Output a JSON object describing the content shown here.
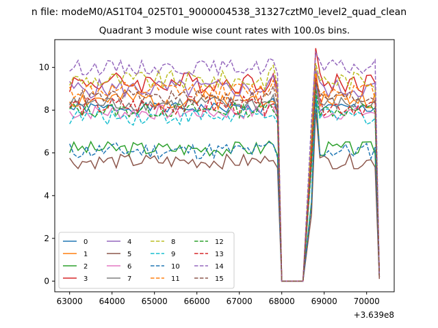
{
  "figure": {
    "suptitle": "n file: modeM0/AS1T04_025T01_9000004538_31327cztM0_level2_quad_clean",
    "title": "Quadrant 3 module wise count rates with 100.0s bins.",
    "offset_label": "+3.639e8"
  },
  "chart_data": {
    "type": "line",
    "title": "Quadrant 3 module wise count rates with 100.0s bins.",
    "xlabel": "",
    "ylabel": "",
    "x_offset": 363900000,
    "xlim": [
      62650,
      70650
    ],
    "ylim": [
      -0.5,
      11.3
    ],
    "xticks": [
      63000,
      64000,
      65000,
      66000,
      67000,
      68000,
      69000,
      70000
    ],
    "xtick_labels": [
      "63000",
      "64000",
      "65000",
      "66000",
      "67000",
      "68000",
      "69000",
      "70000"
    ],
    "yticks": [
      0,
      2,
      4,
      6,
      8,
      10
    ],
    "ytick_labels": [
      "0",
      "2",
      "4",
      "6",
      "8",
      "10"
    ],
    "grid": false,
    "legend": {
      "location": "lower-left",
      "columns": 4
    },
    "segments": [
      {
        "x_start": 63000,
        "x_end": 67900,
        "step": 100
      },
      {
        "x_start": 68000,
        "x_end": 68500,
        "step": 100
      },
      {
        "x_start": 68700,
        "x_end": 70300,
        "step": 100
      }
    ],
    "series": [
      {
        "name": "0",
        "color": "#1f77b4",
        "dash": "solid",
        "mean": 8.1,
        "amplitude": 0.25,
        "seed": 1,
        "gap_values": [
          0,
          0,
          0,
          0,
          0,
          0
        ],
        "peak": 9.3,
        "end": 0.2
      },
      {
        "name": "1",
        "color": "#ff7f0e",
        "dash": "solid",
        "mean": 8.5,
        "amplitude": 0.45,
        "seed": 2,
        "gap_values": [
          0,
          0,
          0,
          0,
          0,
          0
        ],
        "peak": 10.0,
        "end": 0.3
      },
      {
        "name": "2",
        "color": "#2ca02c",
        "dash": "solid",
        "mean": 6.2,
        "amplitude": 0.35,
        "seed": 3,
        "gap_values": [
          0,
          0,
          0,
          0,
          0,
          0
        ],
        "peak": 8.9,
        "end": 0.2
      },
      {
        "name": "3",
        "color": "#d62728",
        "dash": "solid",
        "mean": 9.3,
        "amplitude": 0.5,
        "seed": 4,
        "gap_values": [
          0,
          0,
          0,
          0,
          0,
          0
        ],
        "peak": 10.9,
        "end": 0.2
      },
      {
        "name": "4",
        "color": "#9467bd",
        "dash": "solid",
        "mean": 9.0,
        "amplitude": 0.45,
        "seed": 5,
        "gap_values": [
          0,
          0,
          0,
          0,
          0,
          0
        ],
        "peak": 9.9,
        "end": 0.2
      },
      {
        "name": "5",
        "color": "#8c564b",
        "dash": "solid",
        "mean": 5.6,
        "amplitude": 0.35,
        "seed": 6,
        "gap_values": [
          0,
          0,
          0,
          0,
          0,
          0
        ],
        "peak": 8.0,
        "end": 0.1
      },
      {
        "name": "6",
        "color": "#e377c2",
        "dash": "solid",
        "mean": 7.9,
        "amplitude": 0.35,
        "seed": 7,
        "gap_values": [
          0,
          0,
          0,
          0,
          0,
          0
        ],
        "peak": 9.1,
        "end": 0.2
      },
      {
        "name": "7",
        "color": "#7f7f7f",
        "dash": "solid",
        "mean": 8.3,
        "amplitude": 0.35,
        "seed": 8,
        "gap_values": [
          0,
          0,
          0,
          0,
          0,
          0
        ],
        "peak": 9.6,
        "end": 0.2
      },
      {
        "name": "8",
        "color": "#bcbd22",
        "dash": "dashed",
        "mean": 9.4,
        "amplitude": 0.45,
        "seed": 9,
        "gap_values": [
          0,
          0,
          0,
          0,
          0,
          0
        ],
        "peak": 10.2,
        "end": 0.2
      },
      {
        "name": "9",
        "color": "#17becf",
        "dash": "dashed",
        "mean": 7.7,
        "amplitude": 0.4,
        "seed": 10,
        "gap_values": [
          0,
          0,
          0,
          0,
          0,
          0
        ],
        "peak": 8.7,
        "end": 0.2
      },
      {
        "name": "10",
        "color": "#1f77b4",
        "dash": "dashed",
        "mean": 6.1,
        "amplitude": 0.4,
        "seed": 11,
        "gap_values": [
          0,
          0,
          0,
          0,
          0,
          0
        ],
        "peak": 8.5,
        "end": 0.2
      },
      {
        "name": "11",
        "color": "#ff7f0e",
        "dash": "dashed",
        "mean": 8.9,
        "amplitude": 0.4,
        "seed": 12,
        "gap_values": [
          0,
          0,
          0,
          0,
          0,
          0
        ],
        "peak": 9.7,
        "end": 0.2
      },
      {
        "name": "12",
        "color": "#2ca02c",
        "dash": "dashed",
        "mean": 8.0,
        "amplitude": 0.35,
        "seed": 13,
        "gap_values": [
          0,
          0,
          0,
          0,
          0,
          0
        ],
        "peak": 9.0,
        "end": 0.2
      },
      {
        "name": "13",
        "color": "#d62728",
        "dash": "dashed",
        "mean": 8.2,
        "amplitude": 0.45,
        "seed": 14,
        "gap_values": [
          0,
          0,
          0,
          0,
          0,
          0
        ],
        "peak": 9.5,
        "end": 0.2
      },
      {
        "name": "14",
        "color": "#9467bd",
        "dash": "dashed",
        "mean": 10.0,
        "amplitude": 0.35,
        "seed": 15,
        "gap_values": [
          0,
          0,
          0,
          0,
          0,
          0
        ],
        "peak": 10.7,
        "end": 0.2
      },
      {
        "name": "15",
        "color": "#8c564b",
        "dash": "dashed",
        "mean": 8.6,
        "amplitude": 0.35,
        "seed": 16,
        "gap_values": [
          0,
          0,
          0,
          0,
          0,
          0
        ],
        "peak": 9.3,
        "end": 0.2
      }
    ]
  }
}
